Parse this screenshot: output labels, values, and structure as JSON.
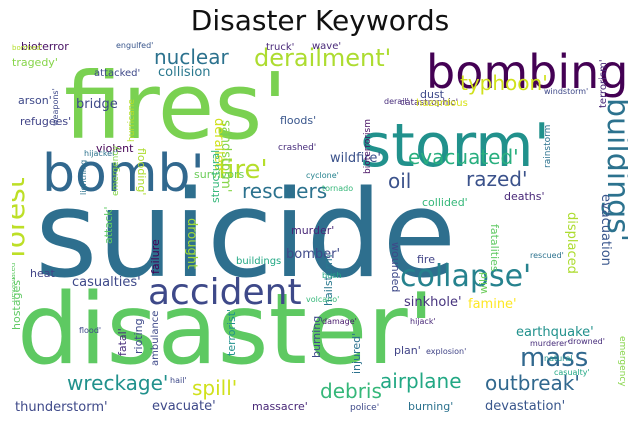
{
  "title": "Disaster Keywords",
  "words": [
    {
      "text": "suicide",
      "color": "#2e6f8e"
    },
    {
      "text": "disaster'",
      "color": "#5ec962"
    },
    {
      "text": "fires'",
      "color": "#7ad151"
    },
    {
      "text": "storm'",
      "color": "#21918c"
    },
    {
      "text": "bombing'",
      "color": "#440154"
    },
    {
      "text": "bomb'",
      "color": "#31688e"
    },
    {
      "text": "accident",
      "color": "#3e4989"
    },
    {
      "text": "collapse'",
      "color": "#26828e"
    },
    {
      "text": "buildings'",
      "color": "#2c728e"
    },
    {
      "text": "forest",
      "color": "#bddf26"
    },
    {
      "text": "fire'",
      "color": "#b5de2b"
    },
    {
      "text": "derailment'",
      "color": "#addc30"
    },
    {
      "text": "nuclear",
      "color": "#2c728e"
    },
    {
      "text": "evacuated'",
      "color": "#29af7f"
    },
    {
      "text": "typhoon'",
      "color": "#d0e11c"
    },
    {
      "text": "mass",
      "color": "#31688e"
    },
    {
      "text": "rescuers",
      "color": "#2c728e"
    },
    {
      "text": "razed'",
      "color": "#3b528b"
    },
    {
      "text": "oil",
      "color": "#3b528b"
    },
    {
      "text": "wreckage'",
      "color": "#21918c"
    },
    {
      "text": "debris",
      "color": "#35b779"
    },
    {
      "text": "airplane",
      "color": "#22a884"
    },
    {
      "text": "outbreak'",
      "color": "#31688e"
    },
    {
      "text": "spill'",
      "color": "#d0e11c"
    },
    {
      "text": "collision",
      "color": "#2a788e"
    },
    {
      "text": "bridge",
      "color": "#3e4989"
    },
    {
      "text": "wildfire'",
      "color": "#3b528b"
    },
    {
      "text": "floods'",
      "color": "#39568c"
    },
    {
      "text": "sinkhole'",
      "color": "#46337e"
    },
    {
      "text": "famine'",
      "color": "#fde725"
    },
    {
      "text": "earthquake'",
      "color": "#21918c"
    },
    {
      "text": "casualties'",
      "color": "#3e4989"
    },
    {
      "text": "drought",
      "color": "#a0da39"
    },
    {
      "text": "murder'",
      "color": "#482878"
    },
    {
      "text": "bomber'",
      "color": "#3e4989"
    },
    {
      "text": "displaced",
      "color": "#addc30"
    },
    {
      "text": "evacuation",
      "color": "#39568c"
    },
    {
      "text": "sandstorm'",
      "color": "#86d549"
    },
    {
      "text": "thunderstorm'",
      "color": "#3e4989"
    },
    {
      "text": "evacuate'",
      "color": "#3e4989"
    },
    {
      "text": "massacre'",
      "color": "#482878"
    },
    {
      "text": "devastation'",
      "color": "#39568c"
    },
    {
      "text": "hostages'",
      "color": "#5ec962"
    },
    {
      "text": "heat",
      "color": "#414487"
    },
    {
      "text": "arson'",
      "color": "#3e4989"
    },
    {
      "text": "refugees'",
      "color": "#414487"
    },
    {
      "text": "violent",
      "color": "#440154"
    },
    {
      "text": "survivors",
      "color": "#6ccd5a"
    },
    {
      "text": "collided'",
      "color": "#35b779"
    },
    {
      "text": "deaths'",
      "color": "#482878"
    },
    {
      "text": "tragedy'",
      "color": "#86d549"
    },
    {
      "text": "bioterror",
      "color": "#471063"
    },
    {
      "text": "engulfed'",
      "color": "#39568c"
    },
    {
      "text": "bombed'",
      "color": "#b5de2b"
    },
    {
      "text": "attacked'",
      "color": "#3e4989"
    },
    {
      "text": "truck'",
      "color": "#482878"
    },
    {
      "text": "wave'",
      "color": "#482878"
    },
    {
      "text": "dust",
      "color": "#3e4989"
    },
    {
      "text": "derail'",
      "color": "#472d7b"
    },
    {
      "text": "catastrophic'",
      "color": "#482878"
    },
    {
      "text": "hazardous",
      "color": "#d8e219"
    },
    {
      "text": "natural",
      "color": "#21918c"
    },
    {
      "text": "windstorm'",
      "color": "#3e4989"
    },
    {
      "text": "terrorism'",
      "color": "#482878"
    },
    {
      "text": "rainstorm",
      "color": "#2c728e"
    },
    {
      "text": "bioterrorism",
      "color": "#471063"
    },
    {
      "text": "flooding'",
      "color": "#addc30"
    },
    {
      "text": "hurricane",
      "color": "#b5de2b"
    },
    {
      "text": "weapons'",
      "color": "#3e4989"
    },
    {
      "text": "crashed'",
      "color": "#472d7b"
    },
    {
      "text": "cyclone'",
      "color": "#26828e"
    },
    {
      "text": "tornado",
      "color": "#35b779"
    },
    {
      "text": "lightning",
      "color": "#2c728e"
    },
    {
      "text": "hijacker'",
      "color": "#2c728e"
    },
    {
      "text": "derailed'",
      "color": "#d0e11c"
    },
    {
      "text": "attack'",
      "color": "#5ec962"
    },
    {
      "text": "emergency",
      "color": "#86d549"
    },
    {
      "text": "failure",
      "color": "#440154"
    },
    {
      "text": "structural",
      "color": "#35b779"
    },
    {
      "text": "buildings",
      "color": "#22a884"
    },
    {
      "text": "wounded",
      "color": "#3e4989"
    },
    {
      "text": "hailstorm'",
      "color": "#2a788e"
    },
    {
      "text": "fatalities",
      "color": "#5ec962"
    },
    {
      "text": "fire",
      "color": "#414487"
    },
    {
      "text": "rescued'",
      "color": "#2c728e"
    },
    {
      "text": "wild",
      "color": "#6ccd5a"
    },
    {
      "text": "bush",
      "color": "#22a884"
    },
    {
      "text": "volcano'",
      "color": "#35b779"
    },
    {
      "text": "damage'",
      "color": "#481a6c"
    },
    {
      "text": "hijack'",
      "color": "#482878"
    },
    {
      "text": "murderer'",
      "color": "#472d7b"
    },
    {
      "text": "drowned'",
      "color": "#472d7b"
    },
    {
      "text": "explosion'",
      "color": "#414487"
    },
    {
      "text": "casualty'",
      "color": "#22a884"
    },
    {
      "text": "emergency",
      "color": "#86d549"
    },
    {
      "text": "terrorist'",
      "color": "#21918c"
    },
    {
      "text": "plan'",
      "color": "#414487"
    },
    {
      "text": "rioting",
      "color": "#3e4989"
    },
    {
      "text": "ambulance",
      "color": "#3e4989"
    },
    {
      "text": "fatal'",
      "color": "#472d7b"
    },
    {
      "text": "flood'",
      "color": "#3e4989"
    },
    {
      "text": "hail'",
      "color": "#3e4989"
    },
    {
      "text": "police'",
      "color": "#3e4989"
    },
    {
      "text": "burning",
      "color": "#3e4989"
    },
    {
      "text": "injured'",
      "color": "#2c728e"
    },
    {
      "text": "burning'",
      "color": "#2c728e"
    },
    {
      "text": "devastated",
      "color": "#5ec962"
    }
  ]
}
